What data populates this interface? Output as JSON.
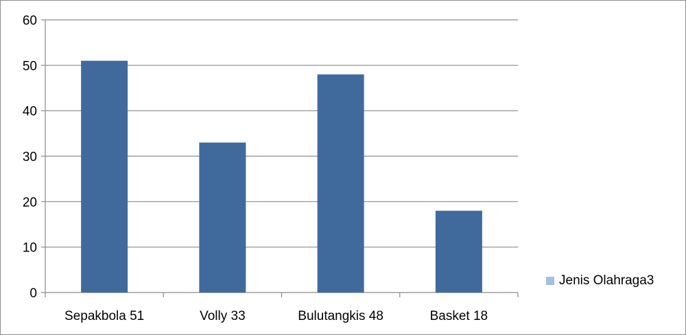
{
  "chart_data": {
    "type": "bar",
    "categories": [
      "Sepakbola 51",
      "Volly 33",
      "Bulutangkis 48",
      "Basket 18"
    ],
    "series": [
      {
        "name": "Jenis Olahraga3",
        "values": [
          51,
          33,
          48,
          18
        ],
        "color": "#406a9c"
      }
    ],
    "title": "",
    "xlabel": "",
    "ylabel": "",
    "ylim": [
      0,
      60
    ],
    "yticks": [
      0,
      10,
      20,
      30,
      40,
      50,
      60
    ],
    "grid": true,
    "legend": "right",
    "legend_swatch_color": "#a7bde0"
  }
}
